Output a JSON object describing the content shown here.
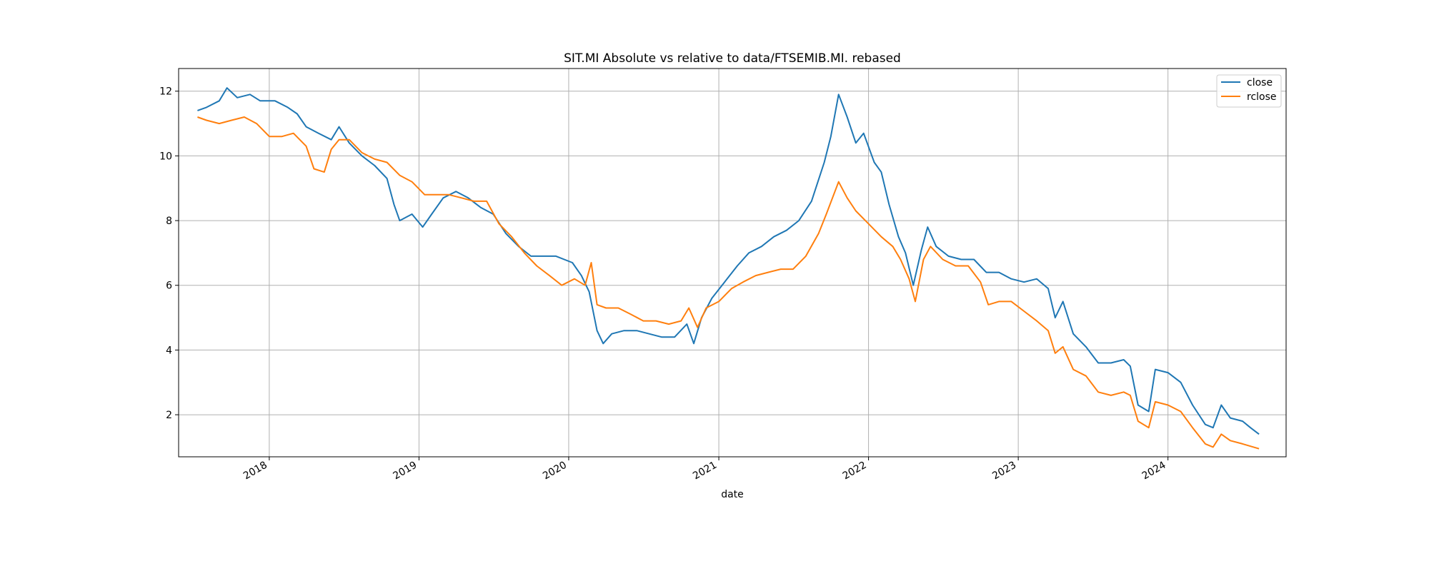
{
  "chart_data": {
    "type": "line",
    "title": "SIT.MI Absolute vs relative to data/FTSEMIB.MI. rebased",
    "xlabel": "date",
    "ylabel": "",
    "x_type": "date",
    "xlim": [
      "2017-05-25",
      "2024-10-15"
    ],
    "ylim": [
      0.7,
      12.7
    ],
    "grid": true,
    "legend_position": "top-right",
    "x_ticks": [
      "2018-01-01",
      "2019-01-01",
      "2020-01-01",
      "2021-01-01",
      "2022-01-01",
      "2023-01-01",
      "2024-01-01"
    ],
    "x_tick_labels": [
      "2018",
      "2019",
      "2020",
      "2021",
      "2022",
      "2023",
      "2024"
    ],
    "y_ticks": [
      2,
      4,
      6,
      8,
      10,
      12
    ],
    "y_tick_labels": [
      "2",
      "4",
      "6",
      "8",
      "10",
      "12"
    ],
    "series": [
      {
        "name": "close",
        "color": "#1f77b4",
        "points": [
          [
            "2017-07-10",
            11.4
          ],
          [
            "2017-08-01",
            11.5
          ],
          [
            "2017-09-01",
            11.7
          ],
          [
            "2017-09-20",
            12.1
          ],
          [
            "2017-10-15",
            11.8
          ],
          [
            "2017-11-15",
            11.9
          ],
          [
            "2017-12-10",
            11.7
          ],
          [
            "2018-01-15",
            11.7
          ],
          [
            "2018-02-15",
            11.5
          ],
          [
            "2018-03-10",
            11.3
          ],
          [
            "2018-04-01",
            10.9
          ],
          [
            "2018-05-01",
            10.7
          ],
          [
            "2018-06-01",
            10.5
          ],
          [
            "2018-06-20",
            10.9
          ],
          [
            "2018-07-15",
            10.4
          ],
          [
            "2018-08-15",
            10.0
          ],
          [
            "2018-09-15",
            9.7
          ],
          [
            "2018-10-15",
            9.3
          ],
          [
            "2018-11-01",
            8.5
          ],
          [
            "2018-11-15",
            8.0
          ],
          [
            "2018-12-15",
            8.2
          ],
          [
            "2019-01-10",
            7.8
          ],
          [
            "2019-02-01",
            8.2
          ],
          [
            "2019-03-01",
            8.7
          ],
          [
            "2019-04-01",
            8.9
          ],
          [
            "2019-05-01",
            8.7
          ],
          [
            "2019-06-01",
            8.4
          ],
          [
            "2019-07-01",
            8.2
          ],
          [
            "2019-08-01",
            7.6
          ],
          [
            "2019-09-01",
            7.2
          ],
          [
            "2019-10-01",
            6.9
          ],
          [
            "2019-11-01",
            6.9
          ],
          [
            "2019-12-01",
            6.9
          ],
          [
            "2020-01-10",
            6.7
          ],
          [
            "2020-02-01",
            6.3
          ],
          [
            "2020-02-20",
            5.8
          ],
          [
            "2020-03-10",
            4.6
          ],
          [
            "2020-03-25",
            4.2
          ],
          [
            "2020-04-15",
            4.5
          ],
          [
            "2020-05-15",
            4.6
          ],
          [
            "2020-06-15",
            4.6
          ],
          [
            "2020-07-15",
            4.5
          ],
          [
            "2020-08-15",
            4.4
          ],
          [
            "2020-09-15",
            4.4
          ],
          [
            "2020-10-15",
            4.8
          ],
          [
            "2020-11-01",
            4.2
          ],
          [
            "2020-11-20",
            5.0
          ],
          [
            "2020-12-15",
            5.6
          ],
          [
            "2021-01-15",
            6.1
          ],
          [
            "2021-02-15",
            6.6
          ],
          [
            "2021-03-15",
            7.0
          ],
          [
            "2021-04-15",
            7.2
          ],
          [
            "2021-05-15",
            7.5
          ],
          [
            "2021-06-15",
            7.7
          ],
          [
            "2021-07-15",
            8.0
          ],
          [
            "2021-08-15",
            8.6
          ],
          [
            "2021-09-15",
            9.8
          ],
          [
            "2021-10-01",
            10.6
          ],
          [
            "2021-10-20",
            11.9
          ],
          [
            "2021-11-10",
            11.2
          ],
          [
            "2021-12-01",
            10.4
          ],
          [
            "2021-12-20",
            10.7
          ],
          [
            "2022-01-15",
            9.8
          ],
          [
            "2022-02-01",
            9.5
          ],
          [
            "2022-02-20",
            8.5
          ],
          [
            "2022-03-15",
            7.5
          ],
          [
            "2022-04-01",
            7.0
          ],
          [
            "2022-04-20",
            6.0
          ],
          [
            "2022-05-10",
            7.1
          ],
          [
            "2022-05-25",
            7.8
          ],
          [
            "2022-06-15",
            7.2
          ],
          [
            "2022-07-15",
            6.9
          ],
          [
            "2022-08-15",
            6.8
          ],
          [
            "2022-09-15",
            6.8
          ],
          [
            "2022-10-15",
            6.4
          ],
          [
            "2022-11-15",
            6.4
          ],
          [
            "2022-12-15",
            6.2
          ],
          [
            "2023-01-15",
            6.1
          ],
          [
            "2023-02-15",
            6.2
          ],
          [
            "2023-03-15",
            5.9
          ],
          [
            "2023-04-01",
            5.0
          ],
          [
            "2023-04-20",
            5.5
          ],
          [
            "2023-05-15",
            4.5
          ],
          [
            "2023-06-15",
            4.1
          ],
          [
            "2023-07-15",
            3.6
          ],
          [
            "2023-08-15",
            3.6
          ],
          [
            "2023-09-15",
            3.7
          ],
          [
            "2023-10-01",
            3.5
          ],
          [
            "2023-10-20",
            2.3
          ],
          [
            "2023-11-15",
            2.1
          ],
          [
            "2023-12-01",
            3.4
          ],
          [
            "2024-01-01",
            3.3
          ],
          [
            "2024-02-01",
            3.0
          ],
          [
            "2024-03-01",
            2.3
          ],
          [
            "2024-04-01",
            1.7
          ],
          [
            "2024-04-20",
            1.6
          ],
          [
            "2024-05-10",
            2.3
          ],
          [
            "2024-06-01",
            1.9
          ],
          [
            "2024-07-01",
            1.8
          ],
          [
            "2024-07-20",
            1.6
          ],
          [
            "2024-08-10",
            1.4
          ]
        ]
      },
      {
        "name": "rclose",
        "color": "#ff7f0e",
        "points": [
          [
            "2017-07-10",
            11.2
          ],
          [
            "2017-08-01",
            11.1
          ],
          [
            "2017-09-01",
            11.0
          ],
          [
            "2017-10-01",
            11.1
          ],
          [
            "2017-11-01",
            11.2
          ],
          [
            "2017-12-01",
            11.0
          ],
          [
            "2018-01-01",
            10.6
          ],
          [
            "2018-02-01",
            10.6
          ],
          [
            "2018-03-01",
            10.7
          ],
          [
            "2018-04-01",
            10.3
          ],
          [
            "2018-04-20",
            9.6
          ],
          [
            "2018-05-15",
            9.5
          ],
          [
            "2018-06-01",
            10.2
          ],
          [
            "2018-06-20",
            10.5
          ],
          [
            "2018-07-15",
            10.5
          ],
          [
            "2018-08-15",
            10.1
          ],
          [
            "2018-09-15",
            9.9
          ],
          [
            "2018-10-15",
            9.8
          ],
          [
            "2018-11-15",
            9.4
          ],
          [
            "2018-12-15",
            9.2
          ],
          [
            "2019-01-15",
            8.8
          ],
          [
            "2019-02-15",
            8.8
          ],
          [
            "2019-03-15",
            8.8
          ],
          [
            "2019-04-15",
            8.7
          ],
          [
            "2019-05-15",
            8.6
          ],
          [
            "2019-06-15",
            8.6
          ],
          [
            "2019-07-15",
            7.9
          ],
          [
            "2019-08-15",
            7.5
          ],
          [
            "2019-09-15",
            7.0
          ],
          [
            "2019-10-15",
            6.6
          ],
          [
            "2019-11-15",
            6.3
          ],
          [
            "2019-12-15",
            6.0
          ],
          [
            "2020-01-15",
            6.2
          ],
          [
            "2020-02-10",
            6.0
          ],
          [
            "2020-02-25",
            6.7
          ],
          [
            "2020-03-10",
            5.4
          ],
          [
            "2020-04-01",
            5.3
          ],
          [
            "2020-05-01",
            5.3
          ],
          [
            "2020-06-01",
            5.1
          ],
          [
            "2020-07-01",
            4.9
          ],
          [
            "2020-08-01",
            4.9
          ],
          [
            "2020-09-01",
            4.8
          ],
          [
            "2020-10-01",
            4.9
          ],
          [
            "2020-10-20",
            5.3
          ],
          [
            "2020-11-10",
            4.7
          ],
          [
            "2020-12-01",
            5.3
          ],
          [
            "2021-01-01",
            5.5
          ],
          [
            "2021-02-01",
            5.9
          ],
          [
            "2021-03-01",
            6.1
          ],
          [
            "2021-04-01",
            6.3
          ],
          [
            "2021-05-01",
            6.4
          ],
          [
            "2021-06-01",
            6.5
          ],
          [
            "2021-07-01",
            6.5
          ],
          [
            "2021-08-01",
            6.9
          ],
          [
            "2021-09-01",
            7.6
          ],
          [
            "2021-09-20",
            8.2
          ],
          [
            "2021-10-20",
            9.2
          ],
          [
            "2021-11-10",
            8.7
          ],
          [
            "2021-12-01",
            8.3
          ],
          [
            "2022-01-01",
            7.9
          ],
          [
            "2022-02-01",
            7.5
          ],
          [
            "2022-03-01",
            7.2
          ],
          [
            "2022-03-20",
            6.8
          ],
          [
            "2022-04-10",
            6.2
          ],
          [
            "2022-04-25",
            5.5
          ],
          [
            "2022-05-15",
            6.8
          ],
          [
            "2022-06-01",
            7.2
          ],
          [
            "2022-07-01",
            6.8
          ],
          [
            "2022-08-01",
            6.6
          ],
          [
            "2022-09-01",
            6.6
          ],
          [
            "2022-10-01",
            6.1
          ],
          [
            "2022-10-20",
            5.4
          ],
          [
            "2022-11-15",
            5.5
          ],
          [
            "2022-12-15",
            5.5
          ],
          [
            "2023-01-15",
            5.2
          ],
          [
            "2023-02-15",
            4.9
          ],
          [
            "2023-03-15",
            4.6
          ],
          [
            "2023-04-01",
            3.9
          ],
          [
            "2023-04-20",
            4.1
          ],
          [
            "2023-05-15",
            3.4
          ],
          [
            "2023-06-15",
            3.2
          ],
          [
            "2023-07-15",
            2.7
          ],
          [
            "2023-08-15",
            2.6
          ],
          [
            "2023-09-15",
            2.7
          ],
          [
            "2023-10-01",
            2.6
          ],
          [
            "2023-10-20",
            1.8
          ],
          [
            "2023-11-15",
            1.6
          ],
          [
            "2023-12-01",
            2.4
          ],
          [
            "2024-01-01",
            2.3
          ],
          [
            "2024-02-01",
            2.1
          ],
          [
            "2024-03-01",
            1.6
          ],
          [
            "2024-04-01",
            1.1
          ],
          [
            "2024-04-20",
            1.0
          ],
          [
            "2024-05-10",
            1.4
          ],
          [
            "2024-06-01",
            1.2
          ],
          [
            "2024-07-01",
            1.1
          ],
          [
            "2024-08-10",
            0.95
          ]
        ]
      }
    ]
  }
}
